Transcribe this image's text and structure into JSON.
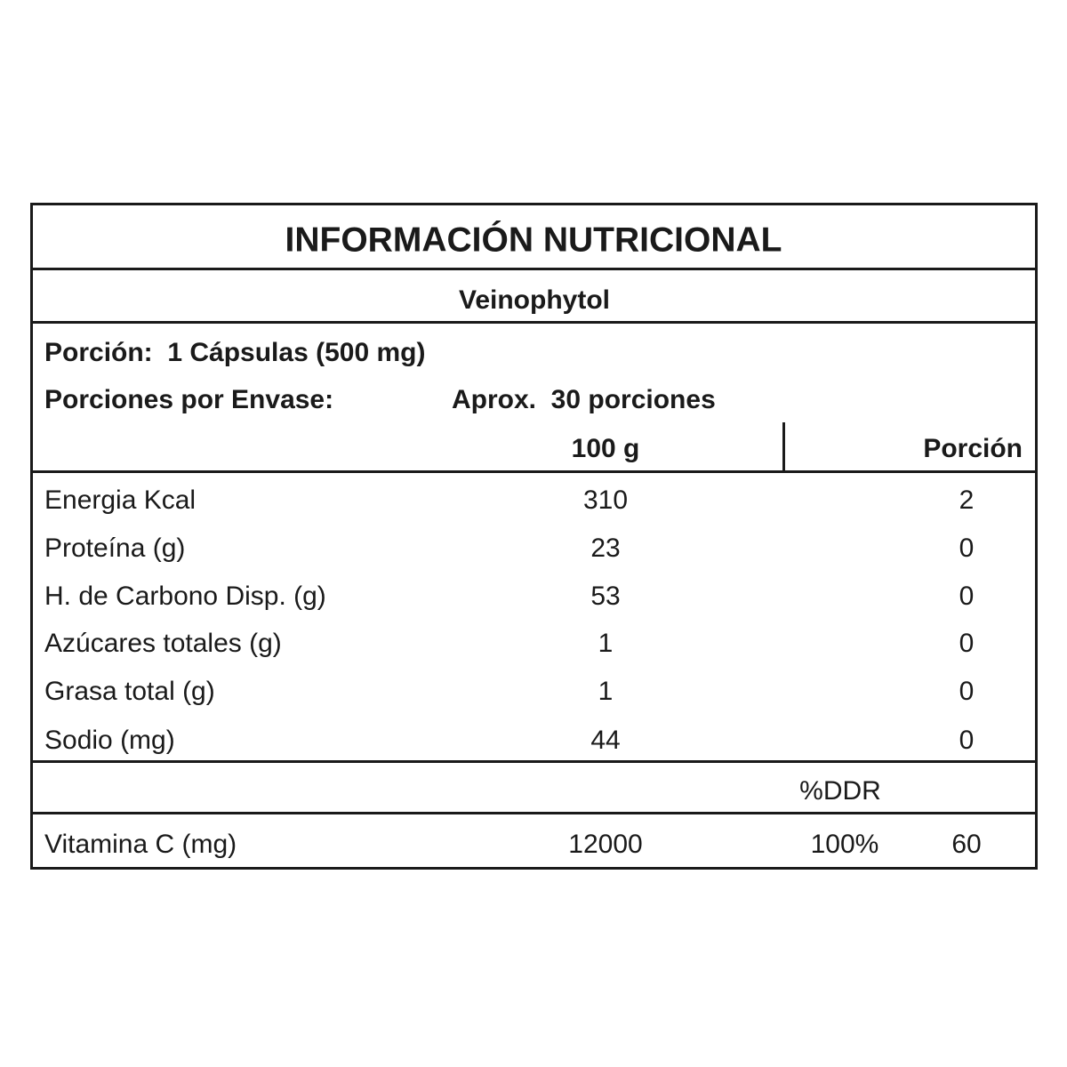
{
  "title": "INFORMACIÓN NUTRICIONAL",
  "product": "Veinophytol",
  "serving": {
    "label": "Porción:",
    "value": "1 Cápsulas (500 mg)",
    "per_container_label": "Porciones por Envase:",
    "per_container_value": "Aprox.  30 porciones"
  },
  "columns": {
    "per100": "100 g",
    "per_serving": "Porción",
    "ddr": "%DDR"
  },
  "rows": [
    {
      "name": "Energia Kcal",
      "per100": "310",
      "serving": "2"
    },
    {
      "name": "Proteína (g)",
      "per100": "23",
      "serving": "0"
    },
    {
      "name": "H. de Carbono Disp. (g)",
      "per100": "53",
      "serving": "0"
    },
    {
      "name": "Azúcares totales (g)",
      "per100": "1",
      "serving": "0"
    },
    {
      "name": "Grasa total (g)",
      "per100": "1",
      "serving": "0"
    },
    {
      "name": "Sodio (mg)",
      "per100": "44",
      "serving": "0"
    }
  ],
  "vitamin": {
    "name": "Vitamina C (mg)",
    "per100": "12000",
    "ddr": "100%",
    "serving": "60"
  }
}
